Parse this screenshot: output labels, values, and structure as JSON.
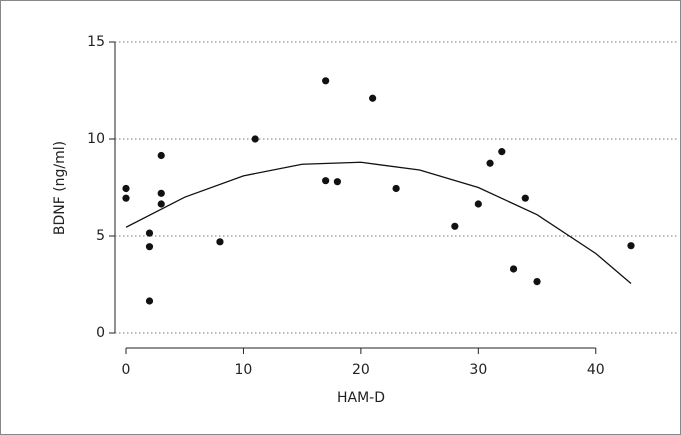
{
  "chart_data": {
    "type": "scatter",
    "x_label": "HAM-D",
    "y_label": "BDNF (ng/ml)",
    "series": [
      {
        "color": "#111111",
        "x": [
          0,
          0,
          2,
          2,
          2,
          3,
          3,
          3,
          8,
          11,
          17,
          17,
          18,
          21,
          23,
          28,
          30,
          31,
          32,
          33,
          34,
          35,
          43
        ],
        "values": [
          7.45,
          6.95,
          5.15,
          4.45,
          1.65,
          9.15,
          7.2,
          6.65,
          4.7,
          10,
          13,
          7.85,
          7.8,
          12.1,
          7.45,
          5.5,
          6.65,
          8.75,
          9.35,
          3.3,
          6.95,
          2.65,
          4.5
        ]
      }
    ],
    "fit": {
      "color": "#111111",
      "x": [
        0,
        5,
        10,
        15,
        20,
        25,
        30,
        35,
        40,
        43
      ],
      "values": [
        5.45,
        7.0,
        8.1,
        8.7,
        8.8,
        8.4,
        7.5,
        6.1,
        4.1,
        2.55
      ]
    },
    "xlim": [
      0,
      43
    ],
    "ylim": [
      0,
      15
    ],
    "xticks": [
      0,
      10,
      20,
      30,
      40
    ],
    "yticks": [
      0,
      5,
      10,
      15
    ],
    "grid": true
  }
}
